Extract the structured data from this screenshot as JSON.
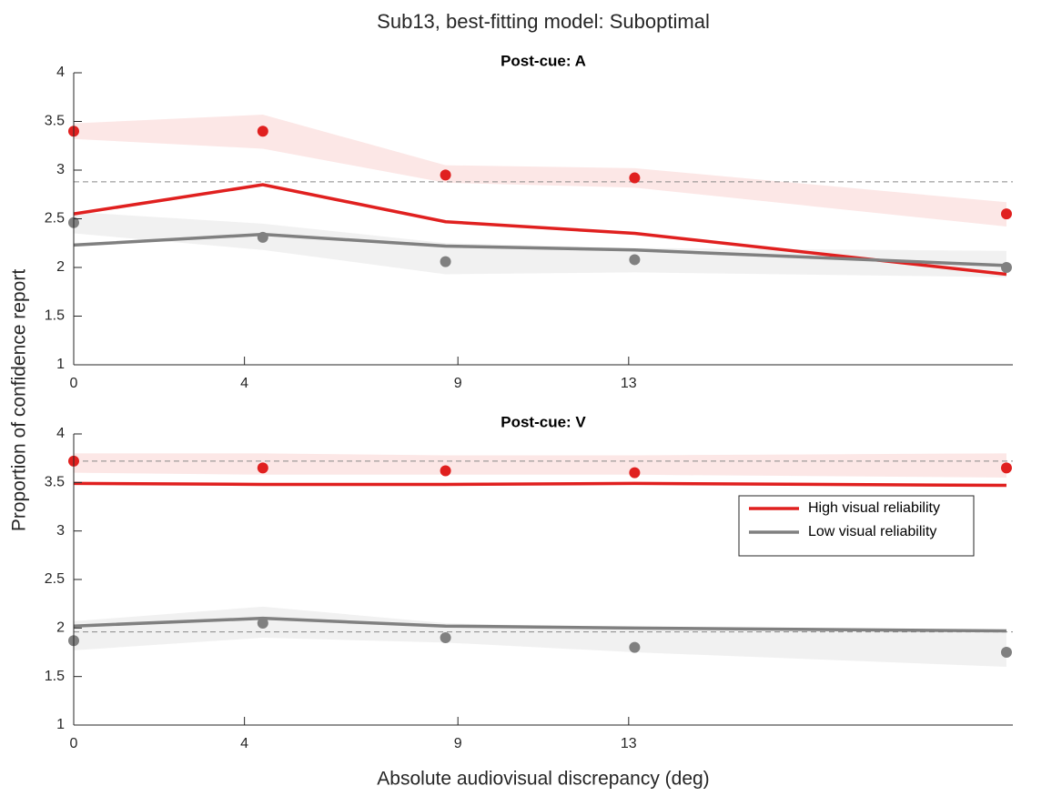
{
  "figure": {
    "title": "Sub13, best-fitting model: Suboptimal",
    "xlabel": "Absolute audiovisual discrepancy (deg)",
    "ylabel": "Proportion of confidence report"
  },
  "chart_data": [
    {
      "type": "line",
      "title": "Post-cue: A",
      "x": [
        0,
        4.43,
        8.71,
        13.14,
        21.85
      ],
      "xlim": [
        0,
        22
      ],
      "xticks": [
        0,
        4,
        9,
        13
      ],
      "ylim": [
        1,
        4
      ],
      "yticks": [
        1,
        1.5,
        2,
        2.5,
        3,
        3.5,
        4
      ],
      "reference_lines": [
        2.88
      ],
      "series": [
        {
          "color": "#e0201f",
          "values": [
            2.55,
            2.85,
            2.47,
            2.35,
            1.93
          ],
          "observed": [
            3.4,
            3.4,
            2.95,
            2.92,
            2.55
          ],
          "upper": [
            3.48,
            3.57,
            3.05,
            3.02,
            2.67
          ],
          "lower": [
            3.32,
            3.22,
            2.87,
            2.82,
            2.42
          ]
        },
        {
          "color": "#808080",
          "values": [
            2.23,
            2.34,
            2.22,
            2.18,
            2.02
          ],
          "observed": [
            2.46,
            2.31,
            2.06,
            2.08,
            2.0
          ],
          "upper": [
            2.57,
            2.45,
            2.25,
            2.2,
            2.17
          ],
          "lower": [
            2.35,
            2.18,
            1.93,
            1.95,
            1.9
          ]
        }
      ]
    },
    {
      "type": "line",
      "title": "Post-cue: V",
      "x": [
        0,
        4.43,
        8.71,
        13.14,
        21.85
      ],
      "xlim": [
        0,
        22
      ],
      "xticks": [
        0,
        4,
        9,
        13
      ],
      "ylim": [
        1,
        4
      ],
      "yticks": [
        1,
        1.5,
        2,
        2.5,
        3,
        3.5,
        4
      ],
      "reference_lines": [
        3.72,
        1.96
      ],
      "legend": "right",
      "series": [
        {
          "name": "High visual reliability",
          "color": "#e0201f",
          "values": [
            3.49,
            3.48,
            3.48,
            3.49,
            3.47
          ],
          "observed": [
            3.72,
            3.65,
            3.62,
            3.6,
            3.65
          ],
          "upper": [
            3.8,
            3.8,
            3.78,
            3.78,
            3.8
          ],
          "lower": [
            3.6,
            3.58,
            3.58,
            3.58,
            3.55
          ]
        },
        {
          "name": "Low visual reliability",
          "color": "#808080",
          "values": [
            2.02,
            2.1,
            2.02,
            2.0,
            1.97
          ],
          "observed": [
            1.87,
            2.05,
            1.9,
            1.8,
            1.75
          ],
          "upper": [
            2.07,
            2.22,
            2.05,
            2.0,
            1.97
          ],
          "lower": [
            1.77,
            1.9,
            1.85,
            1.75,
            1.6
          ]
        }
      ]
    }
  ]
}
